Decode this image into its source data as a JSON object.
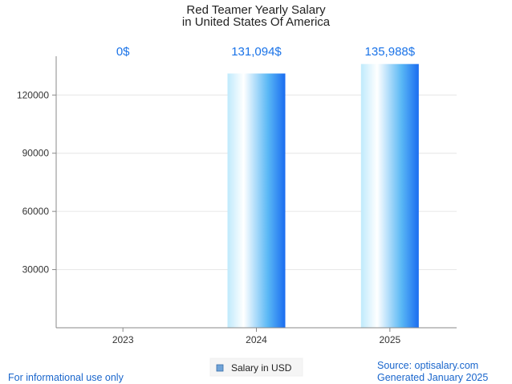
{
  "chart_data": {
    "type": "bar",
    "title": "Red Teamer Yearly Salary",
    "subtitle": "in United States Of America",
    "categories": [
      "2023",
      "2024",
      "2025"
    ],
    "series": [
      {
        "name": "Salary in USD",
        "values": [
          0,
          131094,
          135988
        ],
        "data_labels": [
          "0$",
          "131,094$",
          "135,988$"
        ]
      }
    ],
    "y_ticks": [
      30000,
      60000,
      90000,
      120000
    ],
    "ylim": [
      0,
      140000
    ],
    "grid": true,
    "legend_position": "bottom-center"
  },
  "footer": {
    "left": "For informational use only",
    "source": "Source: optisalary.com",
    "generated": "Generated January 2025"
  },
  "colors": {
    "bar_light": "#bfeafc",
    "bar_mid": "#5ab8f5",
    "bar_dark": "#1a6cf0",
    "label": "#1a73e8",
    "grid": "#e6e6e6",
    "axis": "#888888"
  }
}
